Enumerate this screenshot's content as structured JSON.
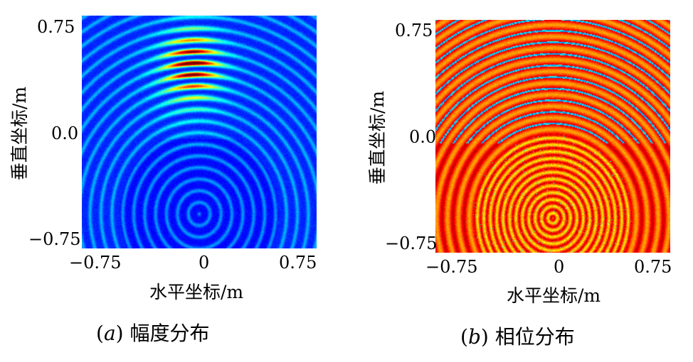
{
  "chart_data": [
    {
      "type": "heatmap",
      "panel_letter": "a",
      "caption": "幅度分布",
      "xlabel": "水平坐标/m",
      "ylabel": "垂直坐标/m",
      "xticks": [
        "−0.75",
        "0",
        "0.75"
      ],
      "yticks": [
        "0.75",
        "0.0",
        "−0.75"
      ],
      "xlim": [
        -0.85,
        0.85
      ],
      "ylim": [
        -0.85,
        0.85
      ],
      "colormap": "jet",
      "description_values": {
        "arc_center_y": -0.6,
        "arc_spacing": 0.085,
        "peak_region_y": [
          0.3,
          0.7
        ],
        "peak_region_x": [
          -0.15,
          0.05
        ]
      }
    },
    {
      "type": "heatmap",
      "panel_letter": "b",
      "caption": "相位分布",
      "xlabel": "水平坐标/m",
      "ylabel": "垂直坐标/m",
      "xticks": [
        "−0.75",
        "0",
        "0.75"
      ],
      "yticks": [
        "0.75",
        "0.0",
        "−0.75"
      ],
      "xlim": [
        -0.85,
        0.85
      ],
      "ylim": [
        -0.85,
        0.85
      ],
      "colormap": "jet",
      "description_values": {
        "arc_center_y": -0.6,
        "arc_spacing": 0.085
      }
    }
  ],
  "colors": {
    "low": "#1c3a9a",
    "high": "#c01010"
  }
}
